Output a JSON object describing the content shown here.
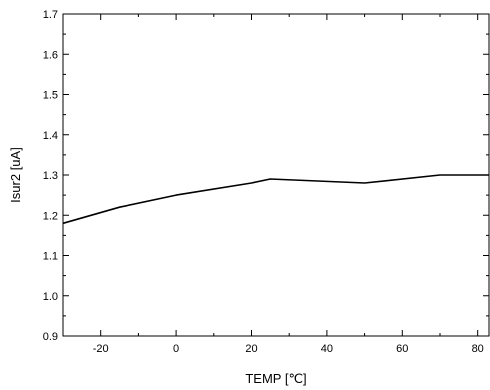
{
  "chart_data": {
    "type": "line",
    "xlabel": "TEMP [℃]",
    "ylabel": "Isur2 [uA]",
    "xlim": [
      -30,
      83
    ],
    "ylim": [
      0.9,
      1.7
    ],
    "x_ticks": [
      -20,
      0,
      20,
      40,
      60,
      80
    ],
    "y_ticks": [
      0.9,
      1.0,
      1.1,
      1.2,
      1.3,
      1.4,
      1.5,
      1.6,
      1.7
    ],
    "x_tick_labels": [
      "-20",
      "0",
      "20",
      "40",
      "60",
      "80"
    ],
    "y_tick_labels": [
      "0.9",
      "1.0",
      "1.1",
      "1.2",
      "1.3",
      "1.4",
      "1.5",
      "1.6",
      "1.7"
    ],
    "grid": false,
    "series": [
      {
        "x": [
          -30,
          -15,
          0,
          20,
          25,
          50,
          70,
          83
        ],
        "y": [
          1.18,
          1.22,
          1.25,
          1.28,
          1.29,
          1.28,
          1.3,
          1.3
        ]
      }
    ]
  }
}
